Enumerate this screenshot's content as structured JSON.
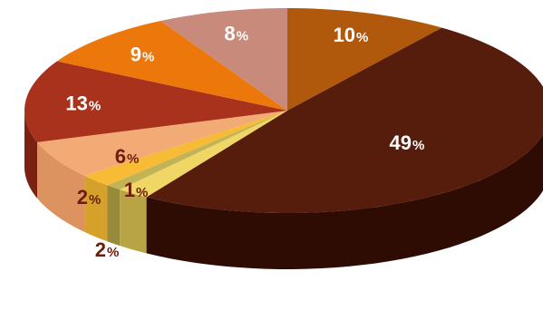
{
  "chart_data": {
    "type": "pie",
    "style": "3d",
    "title": "",
    "slices": [
      {
        "value": 10,
        "label": "10",
        "unit": "%",
        "color": "#b0580c",
        "side_color": "#7a3b08",
        "text_color": "#ffffff"
      },
      {
        "value": 49,
        "label": "49",
        "unit": "%",
        "color": "#561c0c",
        "side_color": "#2e0c04",
        "text_color": "#ffffff"
      },
      {
        "value": 2,
        "label": "2",
        "unit": "%",
        "color": "#f0d664",
        "side_color": "#b9a445",
        "text_color": "#6e1d0a"
      },
      {
        "value": 1,
        "label": "1",
        "unit": "%",
        "color": "#c2b456",
        "side_color": "#978a3b",
        "text_color": "#6e1d0a"
      },
      {
        "value": 2,
        "label": "2",
        "unit": "%",
        "color": "#f7bb36",
        "side_color": "#d6a12a",
        "text_color": "#6e1d0a"
      },
      {
        "value": 6,
        "label": "6",
        "unit": "%",
        "color": "#f2ab74",
        "side_color": "#dc9360",
        "text_color": "#6e1d0a"
      },
      {
        "value": 13,
        "label": "13",
        "unit": "%",
        "color": "#a8321c",
        "side_color": "#7a2111",
        "text_color": "#ffffff"
      },
      {
        "value": 9,
        "label": "9",
        "unit": "%",
        "color": "#ec780c",
        "side_color": "#b85d08",
        "text_color": "#ffffff"
      },
      {
        "value": 8,
        "label": "8",
        "unit": "%",
        "color": "#c88a7a",
        "side_color": "#9d6a5c",
        "text_color": "#ffffff"
      }
    ]
  }
}
